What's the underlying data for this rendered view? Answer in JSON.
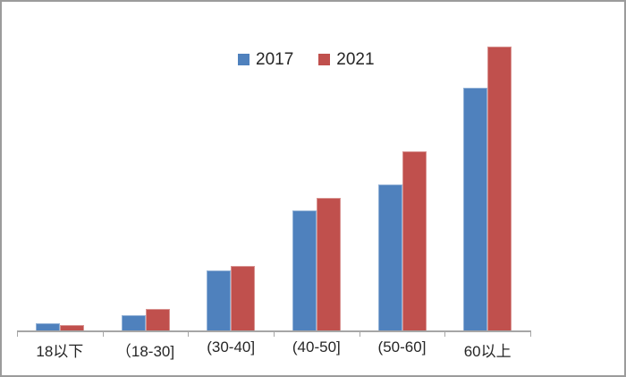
{
  "chart_data": {
    "type": "bar",
    "title": "",
    "xlabel": "",
    "ylabel": "",
    "categories": [
      "18以下",
      "（18-30]",
      "(30-40]",
      "(40-50]",
      "(50-60]",
      "60以上"
    ],
    "series": [
      {
        "name": "2017",
        "color": "#4f81bd",
        "values": [
          2.8,
          5.7,
          21.4,
          42.5,
          51.6,
          85.5
        ]
      },
      {
        "name": "2021",
        "color": "#c0504d",
        "values": [
          2.2,
          7.9,
          23.0,
          46.9,
          63.2,
          100.0
        ]
      }
    ],
    "ylim": [
      0,
      110
    ],
    "value_scale": "relative (no value axis shown in chart)",
    "y_axis_visible": false,
    "gridlines": false,
    "legend_position": "top-center",
    "axis_color": "#a6a6a6",
    "label_color": "#262626",
    "background_color": "#ffffff",
    "border_color": "#9b9b9b"
  }
}
